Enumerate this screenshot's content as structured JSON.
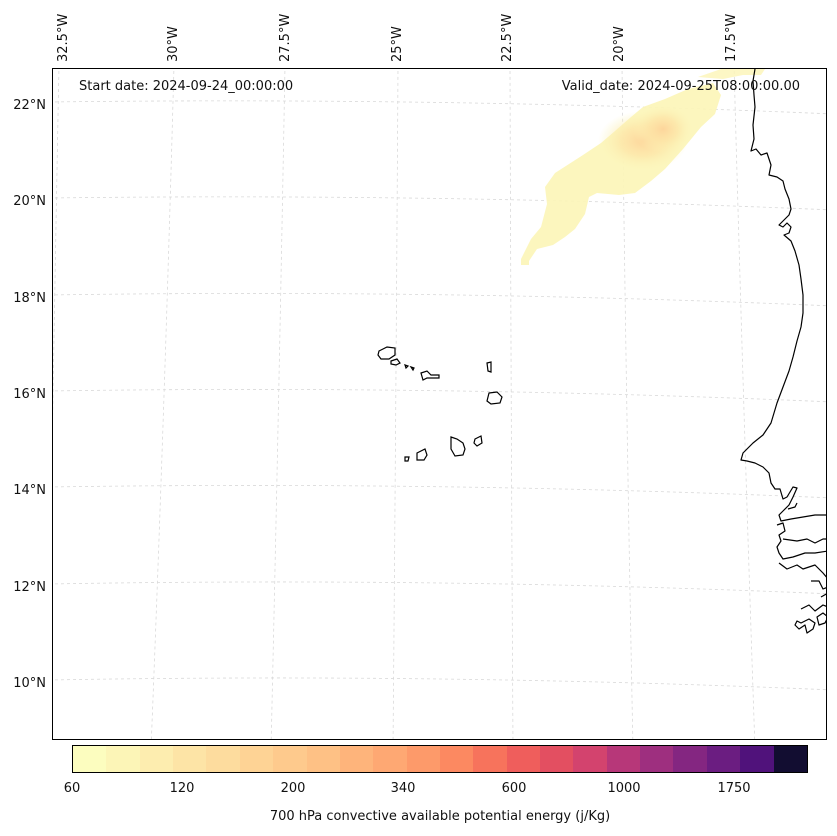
{
  "map": {
    "start_date": "Start date: 2024-09-24_00:00:00",
    "valid_date": "Valid_date: 2024-09-25T08:00:00.00",
    "longitude_labels": [
      "32.5°W",
      "30°W",
      "27.5°W",
      "25°W",
      "22.5°W",
      "20°W",
      "17.5°W"
    ],
    "latitude_labels": [
      "22°N",
      "20°N",
      "18°N",
      "16°N",
      "14°N",
      "12°N",
      "10°N"
    ],
    "variable": "700 hPa convective available potential energy",
    "units": "j/Kg",
    "levels_shown": [
      60,
      120,
      200,
      340,
      600,
      1000,
      1750
    ],
    "colormap": "magma_r",
    "gridlines": "dashed-light-gray",
    "features": [
      "Cape Verde islands",
      "West African coastline"
    ]
  },
  "colorbar": {
    "label": "700 hPa convective available potential energy (j/Kg)",
    "ticks": [
      "60",
      "120",
      "200",
      "340",
      "600",
      "1000",
      "1750"
    ],
    "colors": [
      "#fcfdbf",
      "#fcf5b7",
      "#fdedaf",
      "#fde4a6",
      "#fddc9e",
      "#fed395",
      "#feca8d",
      "#fec185",
      "#feb47b",
      "#fea873",
      "#fd9a6a",
      "#fc8961",
      "#f7735c",
      "#ef5e5c",
      "#e34f61",
      "#d3436e",
      "#b73779",
      "#9e2f7f",
      "#842681",
      "#6b1d81",
      "#50127b",
      "#120d31"
    ]
  }
}
